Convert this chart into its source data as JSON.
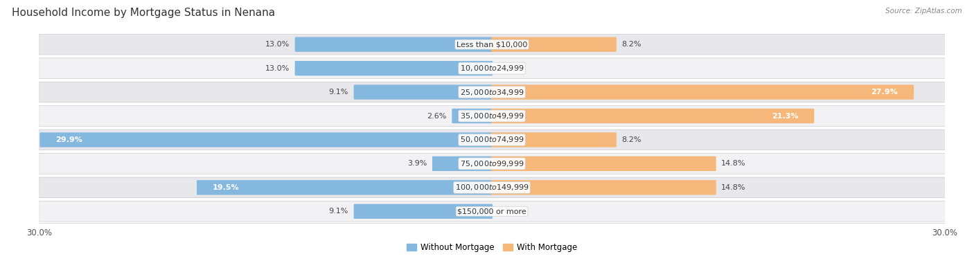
{
  "title": "Household Income by Mortgage Status in Nenana",
  "source": "Source: ZipAtlas.com",
  "categories": [
    "Less than $10,000",
    "$10,000 to $24,999",
    "$25,000 to $34,999",
    "$35,000 to $49,999",
    "$50,000 to $74,999",
    "$75,000 to $99,999",
    "$100,000 to $149,999",
    "$150,000 or more"
  ],
  "without_mortgage": [
    13.0,
    13.0,
    9.1,
    2.6,
    29.9,
    3.9,
    19.5,
    9.1
  ],
  "with_mortgage": [
    8.2,
    0.0,
    27.9,
    21.3,
    8.2,
    14.8,
    14.8,
    0.0
  ],
  "max_val": 30.0,
  "color_without": "#85b8de",
  "color_without_light": "#b8d5ec",
  "color_with": "#f5b87a",
  "color_with_light": "#fad4a8",
  "bg_row_even": "#e8e8ec",
  "bg_row_odd": "#f2f2f5",
  "title_fontsize": 11,
  "label_fontsize": 8,
  "bar_label_fontsize": 8,
  "axis_label_fontsize": 8.5,
  "legend_fontsize": 8.5
}
